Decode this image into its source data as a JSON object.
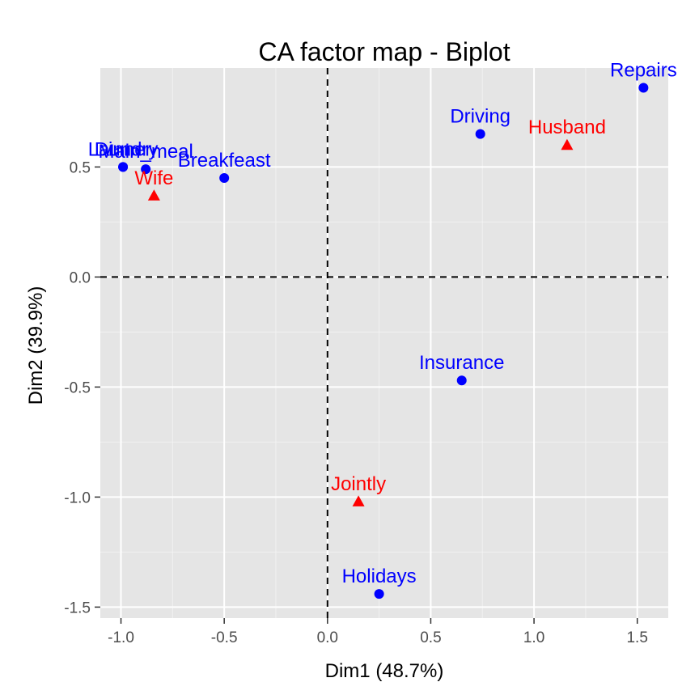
{
  "chart_data": {
    "type": "scatter",
    "title": "CA factor map - Biplot",
    "xlabel": "Dim1 (48.7%)",
    "ylabel": "Dim2 (39.9%)",
    "xlim": [
      -1.1,
      1.65
    ],
    "ylim": [
      -1.55,
      0.95
    ],
    "xticks": [
      {
        "value": -1.0,
        "label": "-1.0"
      },
      {
        "value": -0.5,
        "label": "-0.5"
      },
      {
        "value": 0.0,
        "label": "0.0"
      },
      {
        "value": 0.5,
        "label": "0.5"
      },
      {
        "value": 1.0,
        "label": "1.0"
      },
      {
        "value": 1.5,
        "label": "1.5"
      }
    ],
    "yticks": [
      {
        "value": -1.5,
        "label": "-1.5"
      },
      {
        "value": -1.0,
        "label": "-1.0"
      },
      {
        "value": -0.5,
        "label": "-0.5"
      },
      {
        "value": 0.0,
        "label": "0.0"
      },
      {
        "value": 0.5,
        "label": "0.5"
      }
    ],
    "grid": true,
    "reference_lines": {
      "x": 0,
      "y": 0,
      "style": "dashed"
    },
    "series": [
      {
        "marker": "circle",
        "color": "#0000ff",
        "points": [
          {
            "label": "Laundry",
            "x": -0.99,
            "y": 0.5
          },
          {
            "label": "Main_meal",
            "x": -0.88,
            "y": 0.49
          },
          {
            "label": "Dinner",
            "x": -0.99,
            "y": 0.5
          },
          {
            "label": "Breakfeast",
            "x": -0.5,
            "y": 0.45
          },
          {
            "label": "Driving",
            "x": 0.74,
            "y": 0.65
          },
          {
            "label": "Repairs",
            "x": 1.53,
            "y": 0.86
          },
          {
            "label": "Insurance",
            "x": 0.65,
            "y": -0.47
          },
          {
            "label": "Holidays",
            "x": 0.25,
            "y": -1.44
          }
        ]
      },
      {
        "marker": "triangle",
        "color": "#ff0000",
        "points": [
          {
            "label": "Wife",
            "x": -0.84,
            "y": 0.37
          },
          {
            "label": "Husband",
            "x": 1.16,
            "y": 0.6
          },
          {
            "label": "Jointly",
            "x": 0.15,
            "y": -1.02
          }
        ]
      }
    ]
  }
}
